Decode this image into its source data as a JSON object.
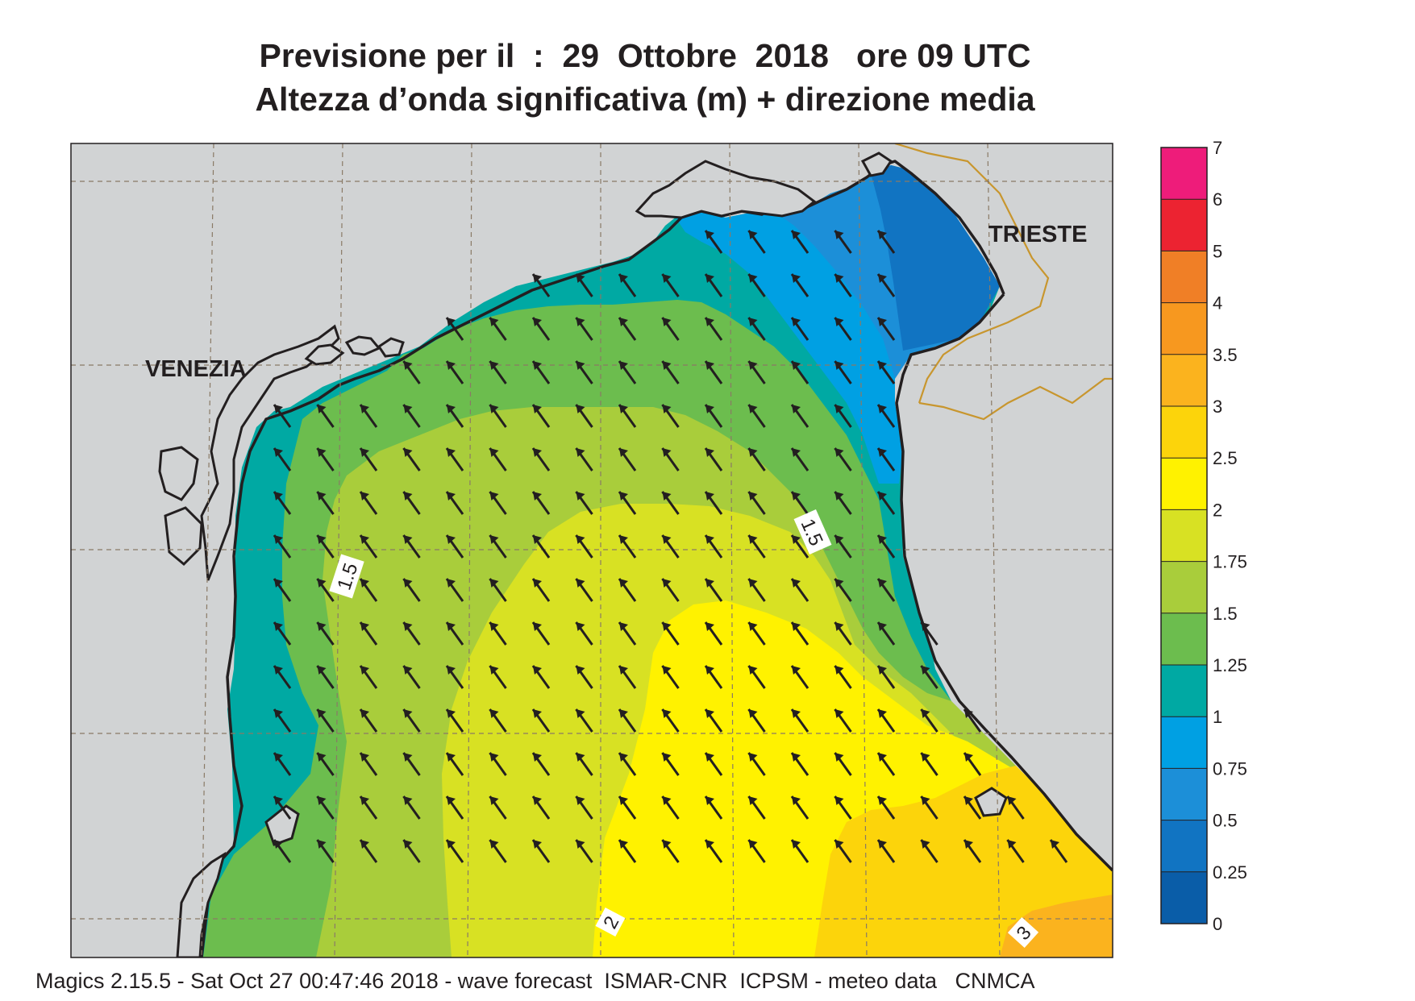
{
  "title": {
    "line1": "Previsione per il  :  29  Ottobre  2018   ore 09 UTC",
    "line2": "Altezza d’onda significativa (m) + direzione media"
  },
  "map": {
    "place_labels": [
      "VENEZIA",
      "TRIESTE"
    ],
    "contour_labels": [
      "1.5",
      "1.5",
      "2",
      "3"
    ],
    "land_color": "#d1d3d4",
    "coast_color": "#231f20",
    "border_color": "#c8962e",
    "arrow_color": "#231f20",
    "arrow_direction": "toward north-west"
  },
  "colorbar": {
    "unit": "m",
    "ticks": [
      "7",
      "6",
      "5",
      "4",
      "3.5",
      "3",
      "2.5",
      "2",
      "1.75",
      "1.5",
      "1.25",
      "1",
      "0.75",
      "0.5",
      "0.25",
      "0"
    ],
    "bins": [
      {
        "from": 6,
        "to": 7,
        "color": "#ee1c7a"
      },
      {
        "from": 5,
        "to": 6,
        "color": "#ec2331"
      },
      {
        "from": 4,
        "to": 5,
        "color": "#f07f26"
      },
      {
        "from": 3.5,
        "to": 4,
        "color": "#f7981f"
      },
      {
        "from": 3,
        "to": 3.5,
        "color": "#fbb31e"
      },
      {
        "from": 2.5,
        "to": 3,
        "color": "#fcd40b"
      },
      {
        "from": 2,
        "to": 2.5,
        "color": "#fff200"
      },
      {
        "from": 1.75,
        "to": 2,
        "color": "#d8e123"
      },
      {
        "from": 1.5,
        "to": 1.75,
        "color": "#a9cd3b"
      },
      {
        "from": 1.25,
        "to": 1.5,
        "color": "#6cbd4e"
      },
      {
        "from": 1,
        "to": 1.25,
        "color": "#00a9a3"
      },
      {
        "from": 0.75,
        "to": 1,
        "color": "#00a0e3"
      },
      {
        "from": 0.5,
        "to": 0.75,
        "color": "#1c8fd8"
      },
      {
        "from": 0.25,
        "to": 0.5,
        "color": "#1174c2"
      },
      {
        "from": 0,
        "to": 0.25,
        "color": "#0a5da8"
      }
    ]
  },
  "footer": "Magics 2.15.5 - Sat Oct 27 00:47:46 2018 - wave forecast  ISMAR-CNR  ICPSM - meteo data   CNMCA"
}
